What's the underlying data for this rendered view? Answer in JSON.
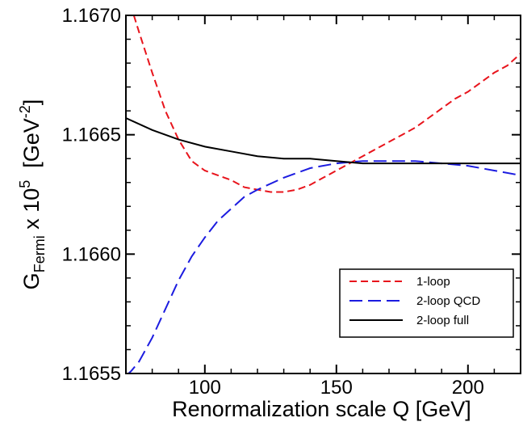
{
  "chart_data": {
    "type": "line",
    "xlabel": "Renormalization scale Q  [GeV]",
    "ylabel": {
      "main": "G",
      "sub": "Fermi",
      "mid": " x 10",
      "exp": "5",
      "unit_open": "  [GeV",
      "unit_exp": "-2",
      "unit_close": "]"
    },
    "xlim": [
      70,
      220
    ],
    "ylim": [
      1.1655,
      1.167
    ],
    "xticks": [
      100,
      150,
      200
    ],
    "yticks": [
      {
        "value": 1.1655,
        "label": "1.1655"
      },
      {
        "value": 1.166,
        "label": "1.1660"
      },
      {
        "value": 1.1665,
        "label": "1.1665"
      },
      {
        "value": 1.167,
        "label": "1.1670"
      }
    ],
    "legend_position": "bottom-right",
    "series": [
      {
        "name": "1-loop",
        "color": "#e8141c",
        "dash": "dashed",
        "x": [
          73,
          75,
          80,
          85,
          90,
          95,
          100,
          105,
          110,
          115,
          120,
          125,
          130,
          135,
          140,
          145,
          150,
          155,
          160,
          165,
          170,
          175,
          180,
          185,
          190,
          195,
          200,
          205,
          210,
          215,
          220
        ],
        "y": [
          1.167,
          1.16693,
          1.16676,
          1.1666,
          1.16648,
          1.16639,
          1.16635,
          1.16633,
          1.16631,
          1.16628,
          1.16627,
          1.16626,
          1.16626,
          1.16627,
          1.16629,
          1.16632,
          1.16635,
          1.16638,
          1.16641,
          1.16644,
          1.16647,
          1.1665,
          1.16653,
          1.16657,
          1.16661,
          1.16665,
          1.16668,
          1.16672,
          1.16676,
          1.16679,
          1.16684
        ]
      },
      {
        "name": "2-loop QCD",
        "color": "#1c1ce0",
        "dash": "longdash",
        "x": [
          70,
          72,
          75,
          80,
          85,
          90,
          95,
          100,
          105,
          110,
          115,
          120,
          130,
          140,
          150,
          160,
          170,
          180,
          190,
          200,
          210,
          220
        ],
        "y": [
          1.16549,
          1.16551,
          1.16555,
          1.16565,
          1.16577,
          1.16589,
          1.16599,
          1.16607,
          1.16614,
          1.16619,
          1.16624,
          1.16627,
          1.16632,
          1.16636,
          1.16638,
          1.16639,
          1.16639,
          1.16639,
          1.16638,
          1.16637,
          1.16635,
          1.16633
        ]
      },
      {
        "name": "2-loop full",
        "color": "#000000",
        "dash": "solid",
        "x": [
          70,
          80,
          90,
          100,
          110,
          120,
          130,
          140,
          150,
          160,
          170,
          180,
          190,
          200,
          210,
          220
        ],
        "y": [
          1.16657,
          1.16652,
          1.16648,
          1.16645,
          1.16643,
          1.16641,
          1.1664,
          1.1664,
          1.16639,
          1.16638,
          1.16638,
          1.16638,
          1.16638,
          1.16638,
          1.16638,
          1.16638
        ]
      }
    ]
  }
}
